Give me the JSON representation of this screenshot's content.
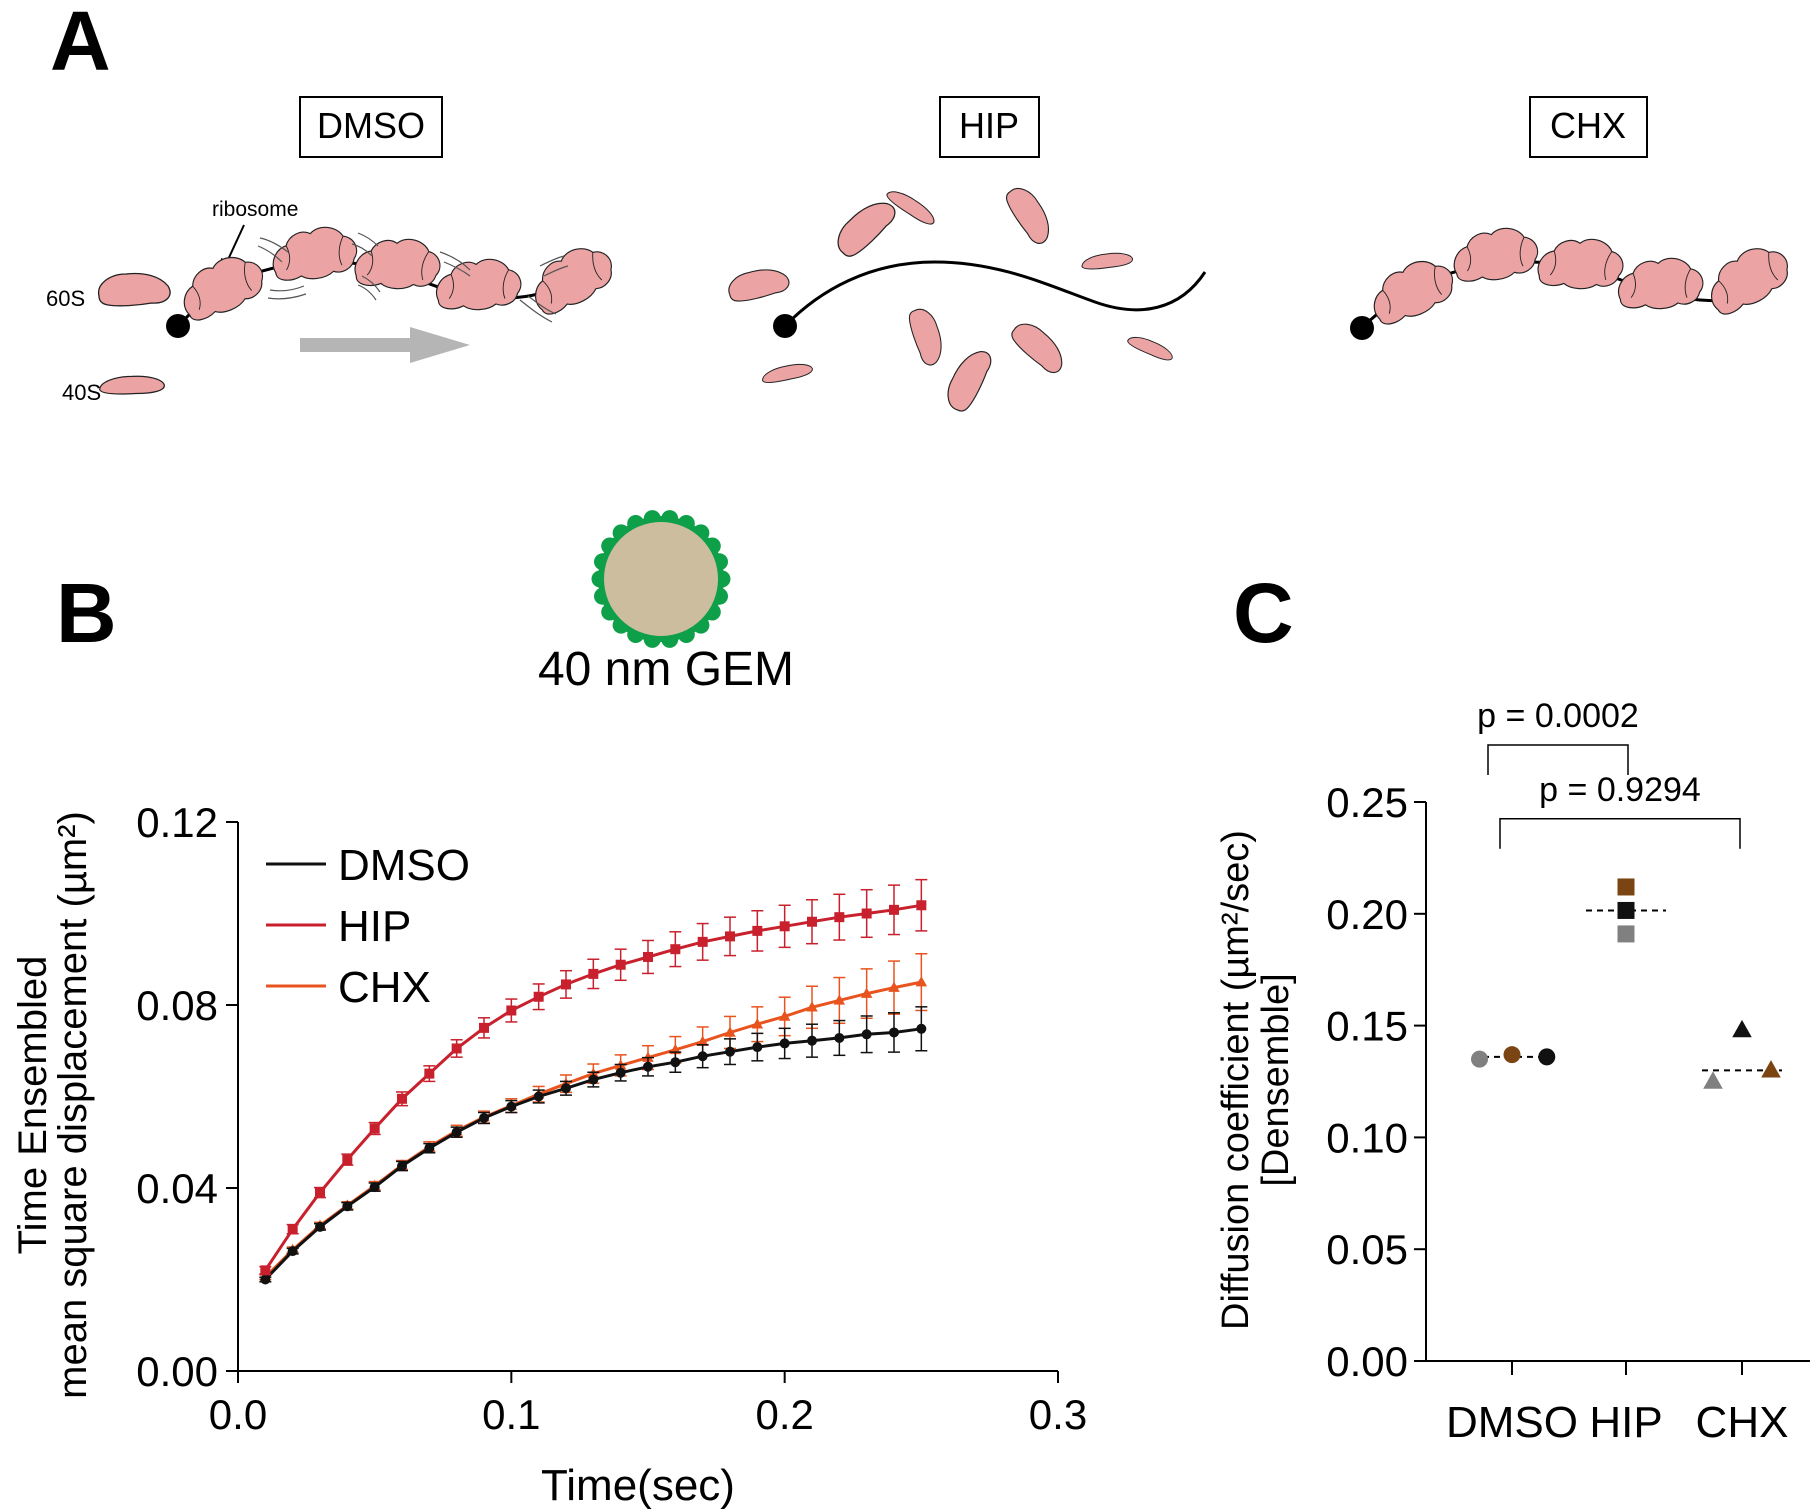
{
  "panels": {
    "a": {
      "label": "A",
      "conditions": [
        "DMSO",
        "HIP",
        "CHX"
      ],
      "labels": {
        "ribosome": "ribosome",
        "s60": "60S",
        "s40": "40S"
      }
    },
    "b": {
      "label": "B",
      "gem_label": "40 nm GEM"
    },
    "c": {
      "label": "C"
    }
  },
  "colors": {
    "dmso": "#111111",
    "hip": "#c8202c",
    "chx": "#e8531e",
    "ribosome_fill": "#eba3a3",
    "gem_core": "#cdbd9f",
    "gem_dots": "#0e9f49",
    "arrow": "#b5b5b5"
  },
  "chart_data": [
    {
      "id": "msd",
      "type": "line",
      "xlabel": "Time(sec)",
      "ylabel": [
        "Time Ensembled",
        "mean square displacement (µm²)"
      ],
      "xlim": [
        0.0,
        0.3
      ],
      "ylim": [
        0.0,
        0.12
      ],
      "xticks": [
        0.0,
        0.1,
        0.2,
        0.3
      ],
      "xtick_labels": [
        "0.0",
        "0.1",
        "0.2",
        "0.3"
      ],
      "yticks": [
        0.0,
        0.04,
        0.08,
        0.12
      ],
      "ytick_labels": [
        "0.00",
        "0.04",
        "0.08",
        "0.12"
      ],
      "x": [
        0.01,
        0.02,
        0.03,
        0.04,
        0.05,
        0.06,
        0.07,
        0.08,
        0.09,
        0.1,
        0.11,
        0.12,
        0.13,
        0.14,
        0.15,
        0.16,
        0.17,
        0.18,
        0.19,
        0.2,
        0.21,
        0.22,
        0.23,
        0.24,
        0.25
      ],
      "legend_position": "top-left",
      "series": [
        {
          "name": "DMSO",
          "marker": "circle",
          "values": [
            0.02,
            0.0262,
            0.0315,
            0.036,
            0.0402,
            0.0448,
            0.0487,
            0.0522,
            0.0553,
            0.0578,
            0.06,
            0.0618,
            0.0637,
            0.0652,
            0.0665,
            0.0675,
            0.0688,
            0.0698,
            0.0708,
            0.0716,
            0.0722,
            0.0728,
            0.0736,
            0.074,
            0.0748
          ],
          "errors": [
            0.0005,
            0.0006,
            0.0007,
            0.0008,
            0.0009,
            0.001,
            0.001,
            0.0011,
            0.0012,
            0.0013,
            0.0014,
            0.0015,
            0.0016,
            0.0018,
            0.002,
            0.0022,
            0.0025,
            0.0028,
            0.003,
            0.0033,
            0.0036,
            0.0038,
            0.004,
            0.0043,
            0.0048
          ]
        },
        {
          "name": "HIP",
          "marker": "square",
          "values": [
            0.022,
            0.031,
            0.039,
            0.0462,
            0.053,
            0.0595,
            0.065,
            0.0705,
            0.075,
            0.0788,
            0.0818,
            0.0845,
            0.0868,
            0.0888,
            0.0905,
            0.0922,
            0.0938,
            0.095,
            0.0962,
            0.0972,
            0.0982,
            0.0992,
            0.1,
            0.1008,
            0.1018
          ],
          "errors": [
            0.0008,
            0.001,
            0.0011,
            0.0012,
            0.0013,
            0.0015,
            0.0017,
            0.0019,
            0.0022,
            0.0025,
            0.0028,
            0.003,
            0.0032,
            0.0034,
            0.0036,
            0.0038,
            0.004,
            0.0042,
            0.0044,
            0.0046,
            0.0048,
            0.005,
            0.0052,
            0.0054,
            0.0056
          ]
        },
        {
          "name": "CHX",
          "marker": "triangle",
          "values": [
            0.0205,
            0.0265,
            0.0318,
            0.0362,
            0.0405,
            0.045,
            0.049,
            0.0525,
            0.0555,
            0.058,
            0.0605,
            0.0628,
            0.065,
            0.0668,
            0.0685,
            0.0702,
            0.072,
            0.074,
            0.0758,
            0.0775,
            0.0795,
            0.081,
            0.0825,
            0.0838,
            0.085
          ],
          "errors": [
            0.0005,
            0.0006,
            0.0007,
            0.0008,
            0.0009,
            0.001,
            0.0011,
            0.0012,
            0.0013,
            0.0015,
            0.0017,
            0.0019,
            0.0021,
            0.0023,
            0.0026,
            0.0029,
            0.0032,
            0.0035,
            0.0038,
            0.0042,
            0.0046,
            0.005,
            0.0054,
            0.0058,
            0.0062
          ]
        }
      ]
    },
    {
      "id": "diffusion",
      "type": "scatter",
      "ylabel": [
        "Diffusion coefficient (µm²/sec)",
        "[Densemble]"
      ],
      "ylim": [
        0.0,
        0.25
      ],
      "yticks": [
        0.0,
        0.05,
        0.1,
        0.15,
        0.2,
        0.25
      ],
      "ytick_labels": [
        "0.00",
        "0.05",
        "0.10",
        "0.15",
        "0.20",
        "0.25"
      ],
      "categories": [
        "DMSO",
        "HIP",
        "CHX"
      ],
      "groups": [
        {
          "name": "DMSO",
          "marker": "circle",
          "mean": 0.136,
          "points": [
            {
              "offset": -0.28,
              "value": 0.135,
              "color": "#808080"
            },
            {
              "offset": 0.0,
              "value": 0.137,
              "color": "#7a4512"
            },
            {
              "offset": 0.3,
              "value": 0.136,
              "color": "#111111"
            }
          ]
        },
        {
          "name": "HIP",
          "marker": "square",
          "mean": 0.2015,
          "points": [
            {
              "offset": 0.0,
              "value": 0.212,
              "color": "#7a4512"
            },
            {
              "offset": 0.0,
              "value": 0.2015,
              "color": "#111111"
            },
            {
              "offset": 0.0,
              "value": 0.191,
              "color": "#808080"
            }
          ]
        },
        {
          "name": "CHX",
          "marker": "triangle",
          "mean": 0.13,
          "points": [
            {
              "offset": 0.0,
              "value": 0.148,
              "color": "#111111"
            },
            {
              "offset": -0.25,
              "value": 0.125,
              "color": "#808080"
            },
            {
              "offset": 0.25,
              "value": 0.13,
              "color": "#7a4512"
            }
          ]
        }
      ],
      "comparisons": [
        {
          "from": "DMSO",
          "to": "HIP",
          "label": "p = 0.0002",
          "level": 0.2755
        },
        {
          "from": "DMSO",
          "to": "CHX",
          "label": "p = 0.9294",
          "level": 0.2425
        }
      ]
    }
  ]
}
